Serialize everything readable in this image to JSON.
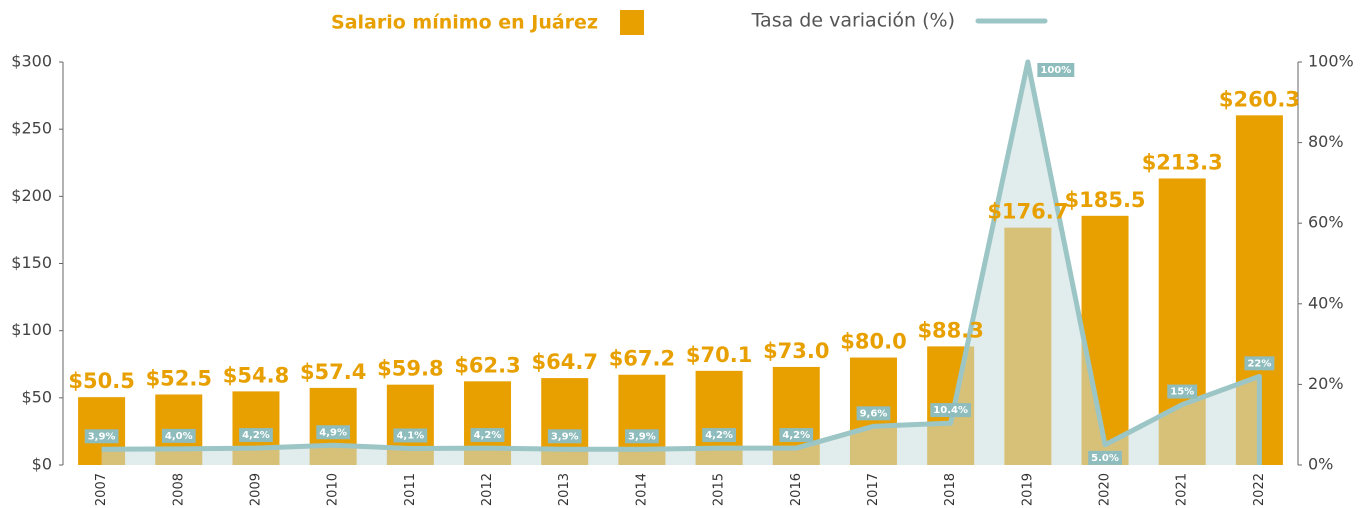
{
  "chart_data": {
    "type": "bar_line",
    "categories": [
      "2007",
      "2008",
      "2009",
      "2010",
      "2011",
      "2012",
      "2013",
      "2014",
      "2015",
      "2016",
      "2017",
      "2018",
      "2019",
      "2020",
      "2021",
      "2022"
    ],
    "series": [
      {
        "name": "Salario mínimo en Juárez",
        "color": "#e8a000",
        "type": "bar",
        "values": [
          50.5,
          52.5,
          54.8,
          57.4,
          59.8,
          62.3,
          64.7,
          67.2,
          70.1,
          73.0,
          80.0,
          88.3,
          176.7,
          185.5,
          213.3,
          260.3
        ],
        "value_labels": [
          "$50.5",
          "$52.5",
          "$54.8",
          "$57.4",
          "$59.8",
          "$62.3",
          "$64.7",
          "$67.2",
          "$70.1",
          "$73.0",
          "$80.0",
          "$88.3",
          "$176.7",
          "$185.5",
          "$213.3",
          "$260.3"
        ]
      },
      {
        "name": "Tasa de variación (%)",
        "color": "#9cc5c5",
        "type": "line",
        "axis": "y2",
        "values": [
          3.9,
          4.0,
          4.2,
          4.9,
          4.1,
          4.2,
          3.9,
          3.9,
          4.2,
          4.2,
          9.6,
          10.4,
          100,
          5.0,
          15,
          22
        ],
        "value_labels": [
          "3,9%",
          "4,0%",
          "4,2%",
          "4,9%",
          "4,1%",
          "4,2%",
          "3,9%",
          "3,9%",
          "4,2%",
          "4,2%",
          "9,6%",
          "10.4%",
          "100%",
          "5.0%",
          "15%",
          "22%"
        ]
      }
    ],
    "ylim": [
      0,
      300
    ],
    "yticks": [
      {
        "value": 0,
        "label": "$0"
      },
      {
        "value": 50,
        "label": "$50"
      },
      {
        "value": 100,
        "label": "$100"
      },
      {
        "value": 150,
        "label": "$150"
      },
      {
        "value": 200,
        "label": "$200"
      },
      {
        "value": 250,
        "label": "$250"
      },
      {
        "value": 300,
        "label": "$300"
      }
    ],
    "y2lim": [
      0,
      100
    ],
    "y2ticks": [
      {
        "value": 0,
        "label": "0%"
      },
      {
        "value": 20,
        "label": "20%"
      },
      {
        "value": 40,
        "label": "40%"
      },
      {
        "value": 60,
        "label": "60%"
      },
      {
        "value": 80,
        "label": "80%"
      },
      {
        "value": 100,
        "label": "100%"
      }
    ],
    "legend": "top"
  }
}
